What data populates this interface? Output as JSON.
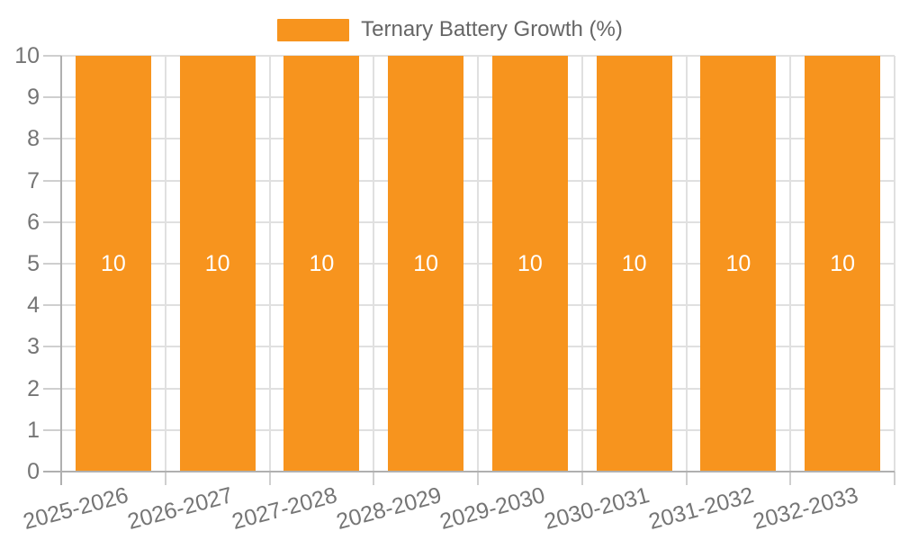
{
  "chart_data": {
    "type": "bar",
    "title": "Ternary Battery Growth (%)",
    "categories": [
      "2025-2026",
      "2026-2027",
      "2027-2028",
      "2028-2029",
      "2029-2030",
      "2030-2031",
      "2031-2032",
      "2032-2033"
    ],
    "series": [
      {
        "name": "Ternary Battery Growth (%)",
        "values": [
          10,
          10,
          10,
          10,
          10,
          10,
          10,
          10
        ]
      }
    ],
    "value_labels": [
      "10",
      "10",
      "10",
      "10",
      "10",
      "10",
      "10",
      "10"
    ],
    "xlabel": "",
    "ylabel": "",
    "ylim": [
      0,
      10
    ],
    "ytick_labels": [
      "0",
      "1",
      "2",
      "3",
      "4",
      "5",
      "6",
      "7",
      "8",
      "9",
      "10"
    ],
    "ytick_step": 1,
    "grid": true,
    "legend_position": "top-center",
    "x_label_rotation_deg": -15
  },
  "colors": {
    "bar": "#F7941E",
    "value_label": "#FFFFFF",
    "axis_line": "#B0B0B0",
    "grid_line": "#E0E0E0",
    "tick_line": "#CFCFCF",
    "axis_label": "#757575",
    "legend_text": "#666666",
    "background": "#FFFFFF"
  }
}
